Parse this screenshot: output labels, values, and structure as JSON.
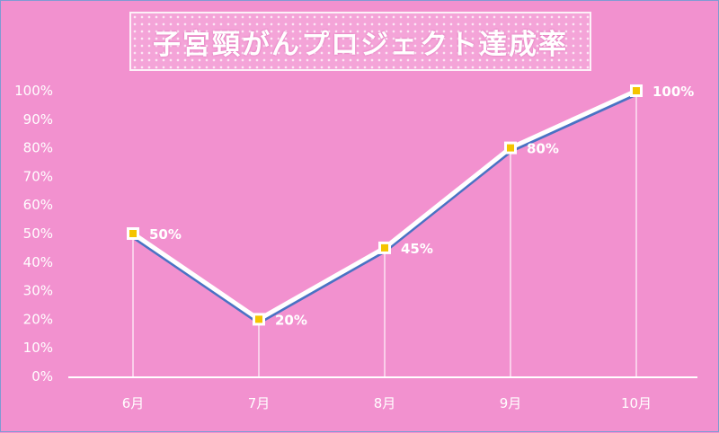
{
  "chart_data": {
    "type": "line",
    "title": "子宮頸がんプロジェクト達成率",
    "categories": [
      "6月",
      "7月",
      "8月",
      "9月",
      "10月"
    ],
    "values": [
      50,
      20,
      45,
      80,
      100
    ],
    "data_labels": [
      "50%",
      "20%",
      "45%",
      "80%",
      "100%"
    ],
    "y_ticks": [
      "0%",
      "10%",
      "20%",
      "30%",
      "40%",
      "50%",
      "60%",
      "70%",
      "80%",
      "90%",
      "100%"
    ],
    "ylim": [
      0,
      100
    ],
    "grid": false,
    "legend": "none",
    "colors": {
      "background": "#f291cf",
      "line": "#4a72c4",
      "line_highlight": "#ffffff",
      "marker": "#f5c400",
      "text": "#ffffff"
    }
  }
}
